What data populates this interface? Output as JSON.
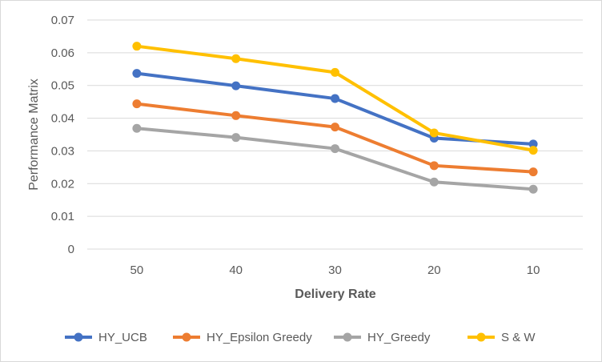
{
  "chart_data": {
    "type": "line",
    "xlabel": "Delivery Rate",
    "ylabel": "Performance Matrix",
    "categories": [
      "50",
      "40",
      "30",
      "20",
      "10"
    ],
    "ylim": [
      0,
      0.07
    ],
    "yticks": [
      "0",
      "0.01",
      "0.02",
      "0.03",
      "0.04",
      "0.05",
      "0.06",
      "0.07"
    ],
    "grid": true,
    "legend_position": "bottom",
    "series": [
      {
        "name": "HY_UCB",
        "color": "#4472C4",
        "values": [
          0.0537,
          0.0499,
          0.046,
          0.0339,
          0.0321
        ]
      },
      {
        "name": "HY_Epsilon Greedy",
        "color": "#ED7D31",
        "values": [
          0.0444,
          0.0408,
          0.0373,
          0.0255,
          0.0236
        ]
      },
      {
        "name": "HY_Greedy",
        "color": "#A5A5A5",
        "values": [
          0.0369,
          0.0341,
          0.0307,
          0.0205,
          0.0183
        ]
      },
      {
        "name": "S & W",
        "color": "#FFC000",
        "values": [
          0.062,
          0.0582,
          0.054,
          0.0355,
          0.0302
        ]
      }
    ]
  }
}
